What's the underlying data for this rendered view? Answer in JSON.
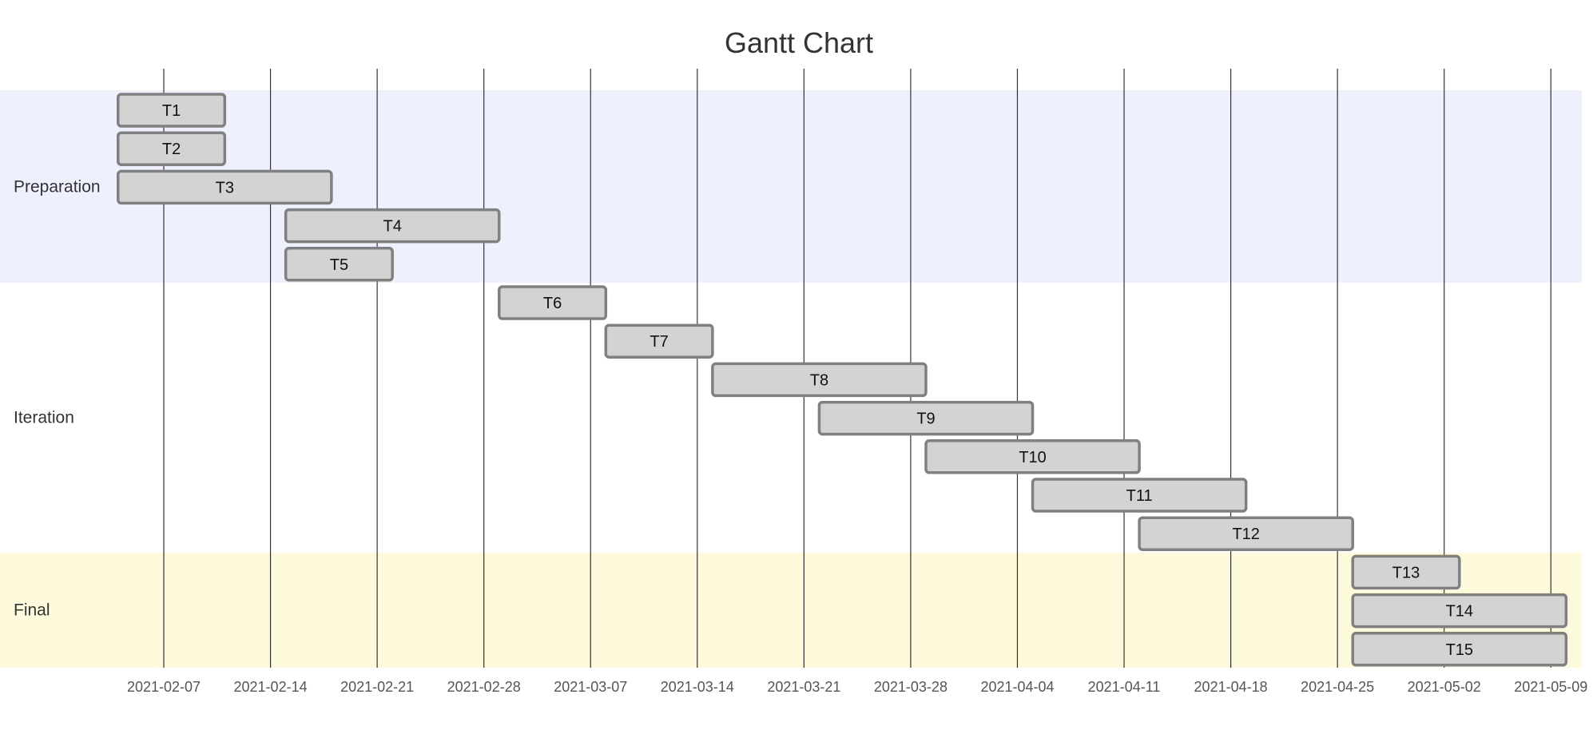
{
  "chart_data": {
    "type": "gantt",
    "title": "Gantt Chart",
    "date_format": "YYYY-MM-DD",
    "x_range": [
      "2021-02-01",
      "2021-05-10"
    ],
    "x_ticks": [
      "2021-02-07",
      "2021-02-14",
      "2021-02-21",
      "2021-02-28",
      "2021-03-07",
      "2021-03-14",
      "2021-03-21",
      "2021-03-28",
      "2021-04-04",
      "2021-04-11",
      "2021-04-18",
      "2021-04-25",
      "2021-05-02",
      "2021-05-09"
    ],
    "grid": true,
    "sections": [
      {
        "name": "Preparation",
        "color": "#eef0fd"
      },
      {
        "name": "Iteration",
        "color": "#ffffff"
      },
      {
        "name": "Final",
        "color": "#fdfbdc"
      }
    ],
    "tasks": [
      {
        "name": "T1",
        "section": "Preparation",
        "start": "2021-02-04",
        "end": "2021-02-11"
      },
      {
        "name": "T2",
        "section": "Preparation",
        "start": "2021-02-04",
        "end": "2021-02-11"
      },
      {
        "name": "T3",
        "section": "Preparation",
        "start": "2021-02-04",
        "end": "2021-02-18"
      },
      {
        "name": "T4",
        "section": "Preparation",
        "start": "2021-02-15",
        "end": "2021-03-01"
      },
      {
        "name": "T5",
        "section": "Preparation",
        "start": "2021-02-15",
        "end": "2021-02-22"
      },
      {
        "name": "T6",
        "section": "Iteration",
        "start": "2021-03-01",
        "end": "2021-03-08"
      },
      {
        "name": "T7",
        "section": "Iteration",
        "start": "2021-03-08",
        "end": "2021-03-15"
      },
      {
        "name": "T8",
        "section": "Iteration",
        "start": "2021-03-15",
        "end": "2021-03-29"
      },
      {
        "name": "T9",
        "section": "Iteration",
        "start": "2021-03-22",
        "end": "2021-04-05"
      },
      {
        "name": "T10",
        "section": "Iteration",
        "start": "2021-03-29",
        "end": "2021-04-12"
      },
      {
        "name": "T11",
        "section": "Iteration",
        "start": "2021-04-05",
        "end": "2021-04-19"
      },
      {
        "name": "T12",
        "section": "Iteration",
        "start": "2021-04-12",
        "end": "2021-04-26"
      },
      {
        "name": "T13",
        "section": "Final",
        "start": "2021-04-26",
        "end": "2021-05-03"
      },
      {
        "name": "T14",
        "section": "Final",
        "start": "2021-04-26",
        "end": "2021-05-10"
      },
      {
        "name": "T15",
        "section": "Final",
        "start": "2021-04-26",
        "end": "2021-05-10"
      }
    ]
  }
}
